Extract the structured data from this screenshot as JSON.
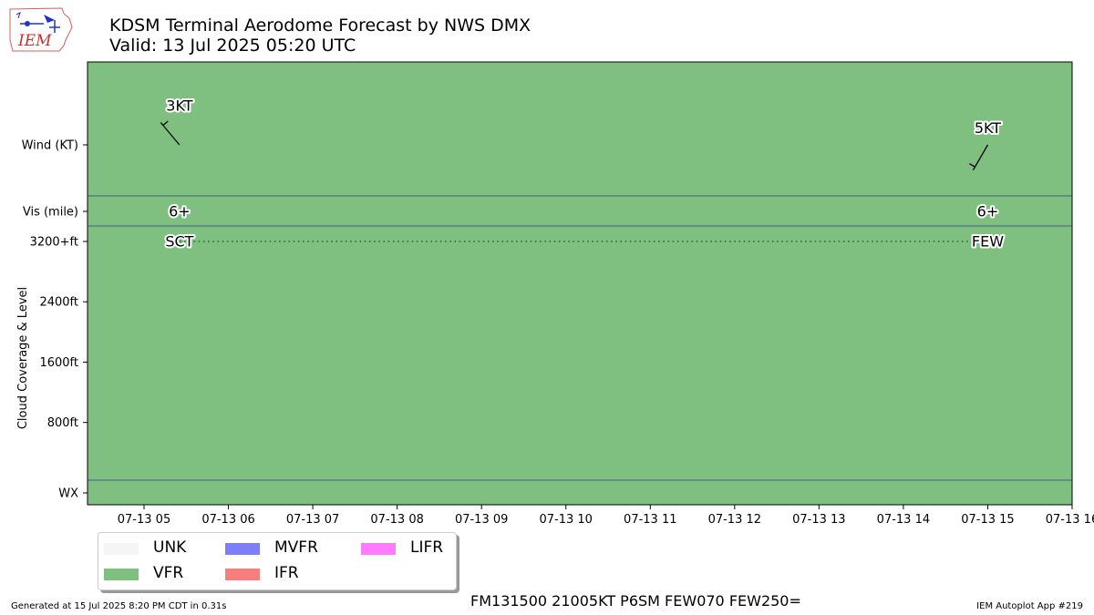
{
  "header": {
    "title": "KDSM Terminal Aerodome Forecast by NWS DMX",
    "valid": "Valid: 13 Jul 2025 05:20 UTC",
    "logo_text": "IEM"
  },
  "chart_data": {
    "type": "timeline",
    "x_axis": {
      "tick_labels": [
        "07-13 05",
        "07-13 06",
        "07-13 07",
        "07-13 08",
        "07-13 09",
        "07-13 10",
        "07-13 11",
        "07-13 12",
        "07-13 13",
        "07-13 14",
        "07-13 15",
        "07-13 16"
      ],
      "range_hours": [
        4.33,
        16.0
      ]
    },
    "y_axis": {
      "label": "Cloud Coverage & Level",
      "row_labels": {
        "wind": "Wind (KT)",
        "vis": "Vis (mile)",
        "wx": "WX"
      },
      "cloud_tick_labels": [
        "3200+ft",
        "2400ft",
        "1600ft",
        "800ft"
      ],
      "cloud_tick_values": [
        3200,
        2400,
        1600,
        800
      ],
      "cloud_range": [
        -750,
        3200
      ]
    },
    "categories": [
      {
        "name": "UNK",
        "color": "#f5f5f5"
      },
      {
        "name": "VFR",
        "color": "#7fc080"
      },
      {
        "name": "MVFR",
        "color": "#7e7ef8"
      },
      {
        "name": "IFR",
        "color": "#f87e7e"
      },
      {
        "name": "LIFR",
        "color": "#fd7cfd"
      }
    ],
    "flight_category": "VFR",
    "forecasts": [
      {
        "hour": 5.42,
        "wind_label": "3KT",
        "wind_dir_deg": 320,
        "wind_kt": 3,
        "vis": "6+",
        "cloud": "SCT",
        "cloud_level_ft": 3200
      },
      {
        "hour": 15.0,
        "wind_label": "5KT",
        "wind_dir_deg": 210,
        "wind_kt": 5,
        "vis": "6+",
        "cloud": "FEW",
        "cloud_level_ft": 3200
      }
    ]
  },
  "footer": {
    "raw_taf": "FM131500 21005KT P6SM FEW070 FEW250=",
    "generated": "Generated at 15 Jul 2025 8:20 PM CDT in 0.31s",
    "app": "IEM Autoplot App #219"
  }
}
